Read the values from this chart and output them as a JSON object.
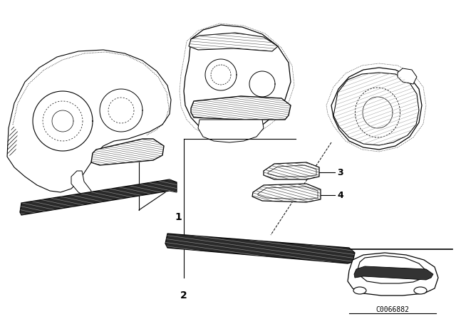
{
  "bg_color": "#ffffff",
  "line_color": "#000000",
  "part_number": "C0066882",
  "labels": [
    "1",
    "2",
    "3",
    "4"
  ],
  "fig_width": 6.4,
  "fig_height": 4.48,
  "dpi": 100
}
